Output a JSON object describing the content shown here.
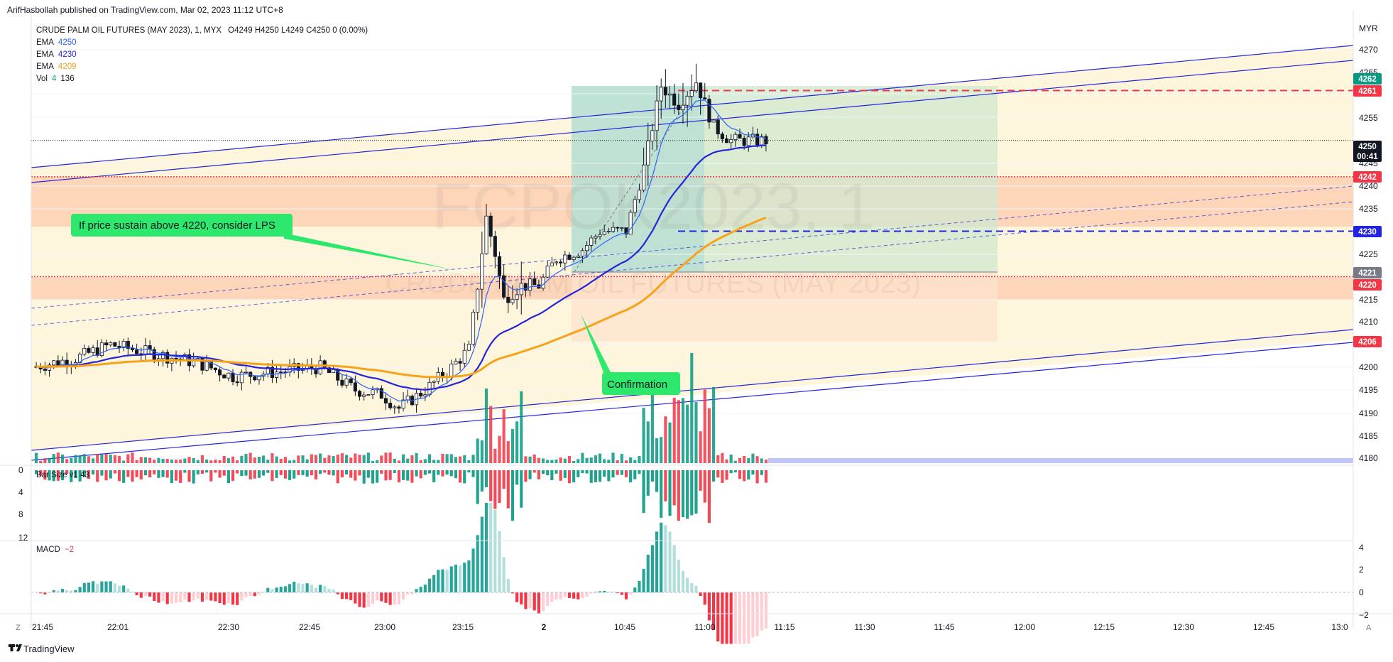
{
  "publisher_line": "ArifHasbollah published on TradingView.com, Mar 02, 2023 11:12 UTC+8",
  "brand": "TradingView",
  "currency": "MYR",
  "legend": {
    "symbol": "CRUDE PALM OIL FUTURES (MAY 2023), 1, MYX",
    "ohlc": "O4249 H4250 L4249 C4250 0 (0.00%)",
    "ema1_label": "EMA",
    "ema1_value": "4250",
    "ema1_color": "#2962ff",
    "ema2_label": "EMA",
    "ema2_value": "4230",
    "ema2_color": "#2962ff",
    "ema3_label": "EMA",
    "ema3_value": "4209",
    "ema3_color": "#f7a21b",
    "vol_label": "Vol",
    "vol_value1": "4",
    "vol_value2": "136"
  },
  "watermark": {
    "symbol": "FCPOK2023, 1",
    "name": "CRUDE PALM OIL FUTURES (MAY 2023)"
  },
  "annotations": {
    "lps_note": "If price sustain above 4220, consider LPS",
    "confirmation": "Confirmation"
  },
  "bar_size_label": "Bar Size v1  43",
  "macd_label": "MACD",
  "macd_value": "−2",
  "time_labels": [
    "21:45",
    "22:01",
    "22:30",
    "22:45",
    "23:00",
    "23:15",
    "2",
    "10:45",
    "11:00",
    "11:15",
    "11:30",
    "11:45",
    "12:00",
    "12:15",
    "12:30",
    "12:45",
    "13:0"
  ],
  "price_axis_labels": [
    "4270",
    "4265",
    "4255",
    "4245",
    "4240",
    "4235",
    "4225",
    "4215",
    "4210",
    "4200",
    "4195",
    "4190",
    "4185",
    "4180"
  ],
  "bar_size_axis_labels": [
    "0",
    "4",
    "8",
    "12"
  ],
  "macd_axis_labels": [
    "4",
    "2",
    "0",
    "−2"
  ],
  "price_badges": [
    {
      "text": "4262",
      "color": "#089981"
    },
    {
      "text": "4261",
      "color": "#f23645"
    },
    {
      "text": "4250",
      "sub": "00:41",
      "color": "#131722"
    },
    {
      "text": "4242",
      "color": "#f23645"
    },
    {
      "text": "4230",
      "color": "#2424e0"
    },
    {
      "text": "4221",
      "color": "#787b86"
    },
    {
      "text": "4220",
      "color": "#f23645"
    },
    {
      "text": "4206",
      "color": "#f23645"
    }
  ],
  "colors": {
    "up": "#089981",
    "down": "#f23645",
    "ema_fast": "#2962ff",
    "ema_mid": "#2424d9",
    "ema_slow": "#f7a21b",
    "zone": "#fdd0b4",
    "channel_fill": "#fdf6dc",
    "target_box": "#cfe8d0",
    "stop_box": "#fde2cd",
    "note_bg": "#2ee86d"
  },
  "chart_data": [
    {
      "type": "candlestick",
      "title": "CRUDE PALM OIL FUTURES (MAY 2023), 1, MYX",
      "x_categories": [
        "21:45",
        "22:01",
        "22:30",
        "22:45",
        "23:00",
        "23:15",
        "2",
        "10:45",
        "11:00",
        "11:15"
      ],
      "ylim": [
        4178,
        4273
      ],
      "ohlc_last": {
        "open": 4249,
        "high": 4250,
        "low": 4249,
        "close": 4250
      },
      "series": [
        {
          "name": "EMA",
          "values_last": 4250
        },
        {
          "name": "EMA",
          "values_last": 4230
        },
        {
          "name": "EMA",
          "values_last": 4209
        }
      ],
      "levels": [
        {
          "price": 4261,
          "style": "dashed",
          "color": "#f23645"
        },
        {
          "price": 4242,
          "style": "dotted",
          "color": "#f23645"
        },
        {
          "price": 4230,
          "style": "dashed",
          "color": "#2424e0"
        },
        {
          "price": 4220,
          "style": "dotted",
          "color": "#f23645"
        },
        {
          "price": 4250,
          "style": "dotted",
          "color": "#131722"
        }
      ],
      "zones": [
        {
          "from": 4231,
          "to": 4242
        },
        {
          "from": 4215,
          "to": 4220
        }
      ],
      "position": {
        "entry": 4221,
        "target": 4262,
        "stop": 4206
      }
    },
    {
      "type": "bar",
      "title": "Bar Size v1",
      "value_label": "43",
      "ylim": [
        0,
        12
      ]
    },
    {
      "type": "bar",
      "title": "MACD",
      "value_label": "−2",
      "ylim": [
        -2,
        4
      ]
    }
  ]
}
